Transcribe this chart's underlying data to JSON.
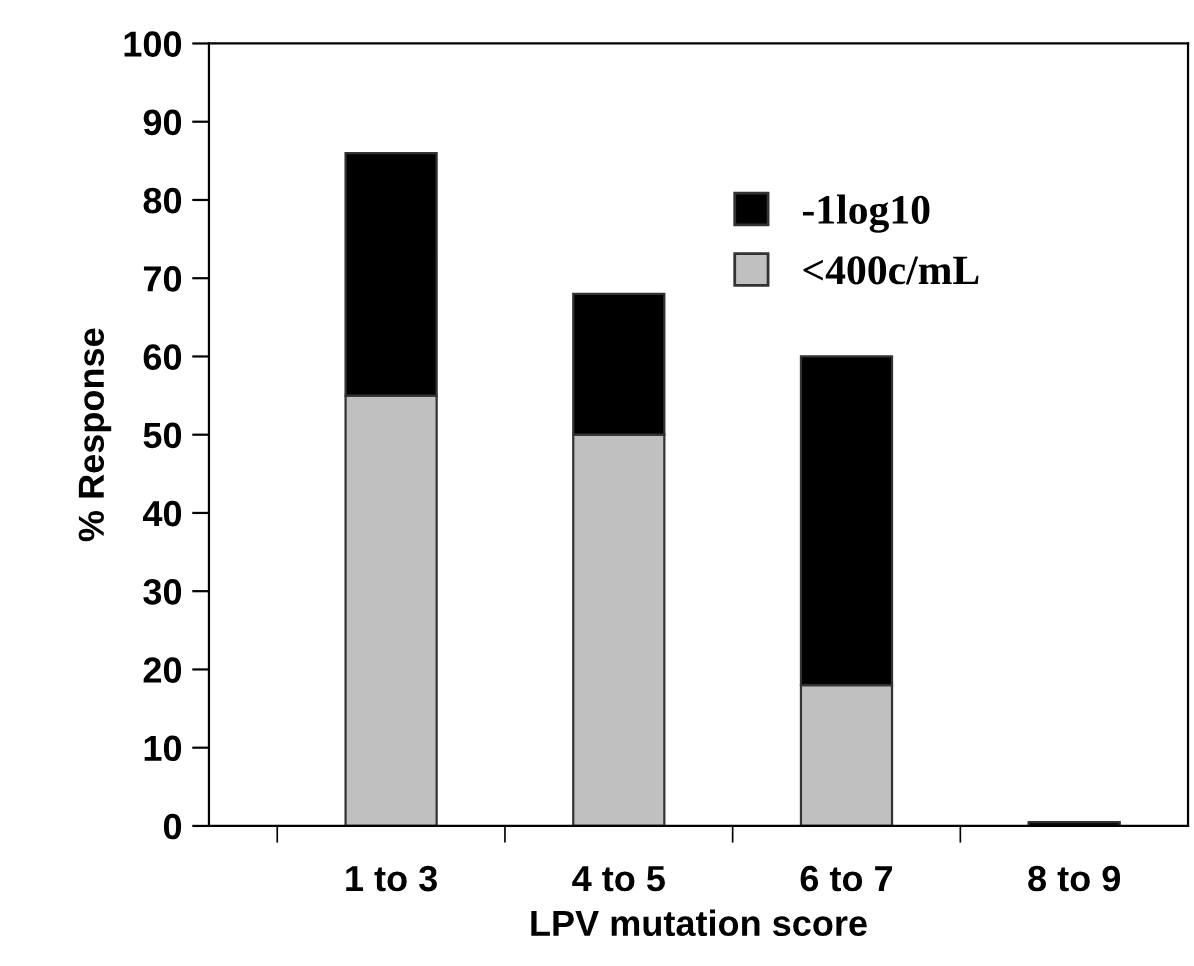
{
  "chart_data": {
    "type": "bar",
    "stacked": true,
    "xlabel": "LPV mutation score",
    "ylabel": "% Response",
    "categories": [
      "1 to 3",
      "4 to 5",
      "6 to 7",
      "8 to 9"
    ],
    "series": [
      {
        "name": "<400c/mL",
        "color": "#c0c0c0",
        "values": [
          55,
          50,
          18,
          0
        ]
      },
      {
        "name": "-1log10",
        "color": "#000000",
        "values": [
          31,
          18,
          42,
          0.5
        ]
      }
    ],
    "ylim": [
      0,
      100
    ],
    "yticks": [
      0,
      10,
      20,
      30,
      40,
      50,
      60,
      70,
      80,
      90,
      100
    ],
    "grid": false,
    "legend": "top right"
  }
}
